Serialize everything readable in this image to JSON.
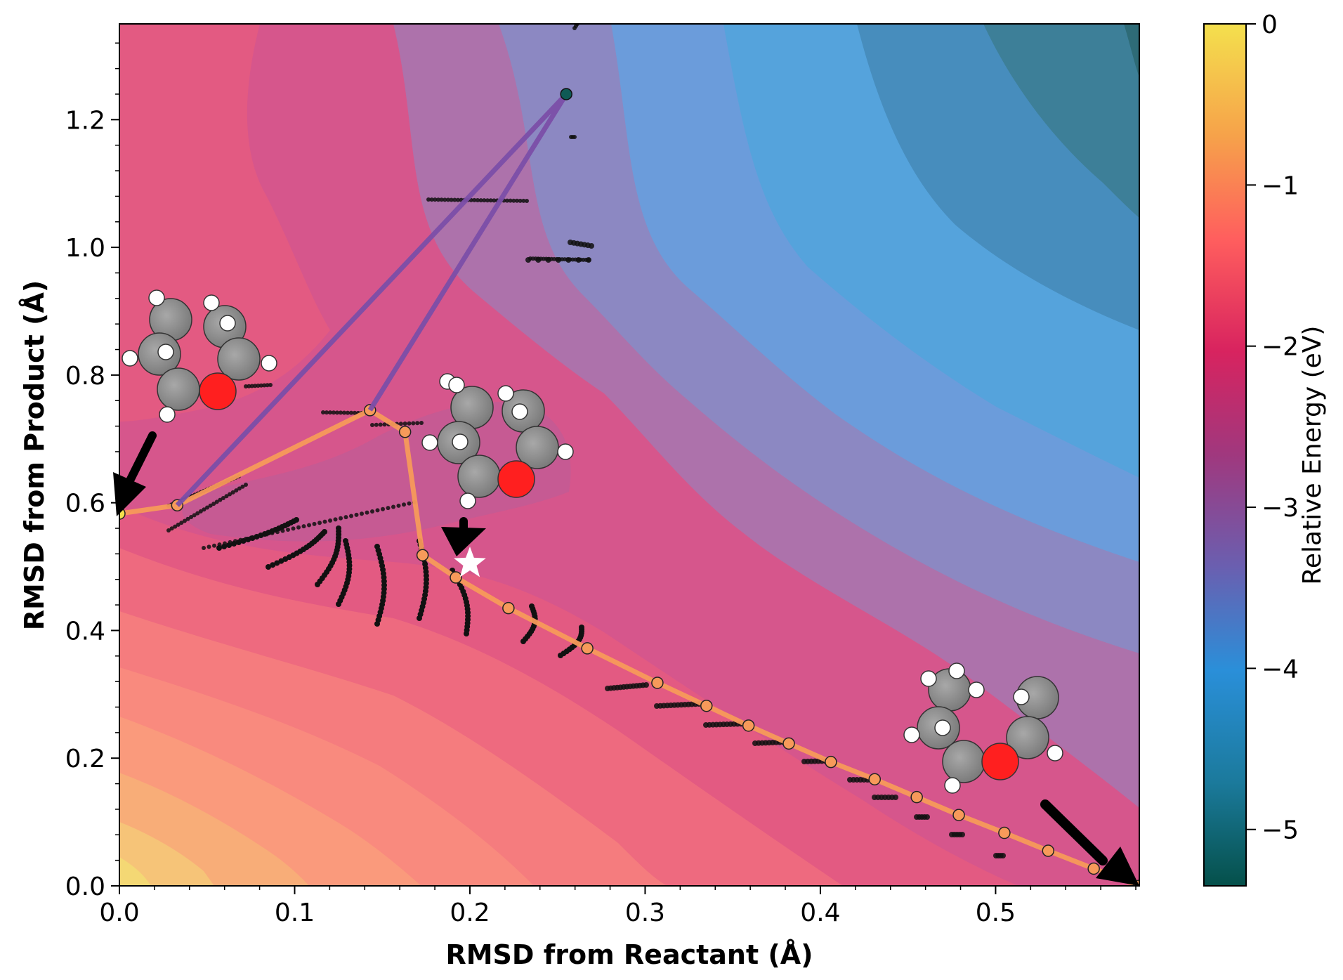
{
  "chart_data": {
    "type": "contour",
    "xlabel": "RMSD from Reactant (Å)",
    "ylabel": "RMSD from Product (Å)",
    "xlim": [
      0.0,
      0.582
    ],
    "ylim": [
      0.0,
      1.35
    ],
    "x_ticks": [
      0.0,
      0.1,
      0.2,
      0.3,
      0.4,
      0.5
    ],
    "x_tick_labels": [
      "0.0",
      "0.1",
      "0.2",
      "0.3",
      "0.4",
      "0.5"
    ],
    "y_ticks": [
      0.0,
      0.2,
      0.4,
      0.6,
      0.8,
      1.0,
      1.2
    ],
    "y_tick_labels": [
      "0.0",
      "0.2",
      "0.4",
      "0.6",
      "0.8",
      "1.0",
      "1.2"
    ],
    "colorbar": {
      "label": "Relative Energy (eV)",
      "range": [
        -5.35,
        0.0
      ],
      "ticks": [
        0,
        -1,
        -2,
        -3,
        -4,
        -5
      ],
      "tick_labels": [
        "0",
        "−1",
        "−2",
        "−3",
        "−4",
        "−5"
      ],
      "stops": [
        "#05504a",
        "#1b7a9c",
        "#2a8fd9",
        "#6a5fb0",
        "#a0387e",
        "#d8235f",
        "#ff5e5e",
        "#f6a24a",
        "#f4e04d"
      ]
    },
    "paths": [
      {
        "name": "orange-path",
        "color": "#f79a5a",
        "x": [
          0.0,
          0.033,
          0.143,
          0.163,
          0.173,
          0.192,
          0.222,
          0.267,
          0.307,
          0.335,
          0.359,
          0.382,
          0.406,
          0.431,
          0.455,
          0.479,
          0.505,
          0.53,
          0.556,
          0.582
        ],
        "y": [
          0.583,
          0.596,
          0.745,
          0.711,
          0.518,
          0.483,
          0.435,
          0.372,
          0.318,
          0.282,
          0.251,
          0.223,
          0.194,
          0.167,
          0.139,
          0.111,
          0.083,
          0.055,
          0.027,
          0.0
        ]
      },
      {
        "name": "purple-path",
        "color": "#7b4ea8",
        "x": [
          0.033,
          0.255,
          0.143
        ],
        "y": [
          0.596,
          1.24,
          0.745
        ]
      }
    ],
    "special_points": [
      {
        "name": "saddle-star",
        "x": 0.2,
        "y": 0.505,
        "marker": "star",
        "color": "#ffffff"
      },
      {
        "name": "max-point",
        "x": 0.255,
        "y": 1.24,
        "marker": "circle",
        "color": "#0f5a55"
      }
    ]
  }
}
